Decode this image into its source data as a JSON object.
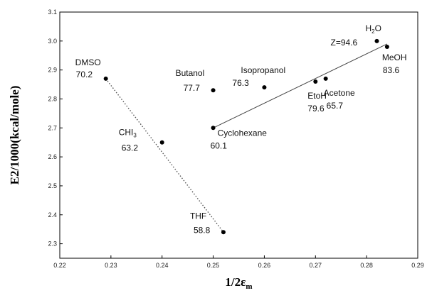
{
  "chart_data": {
    "type": "scatter",
    "xlabel": "1/2ε",
    "xlabel_sub": "m",
    "ylabel": "E2/1000(kcal/mole)",
    "xlim": [
      0.22,
      0.29
    ],
    "ylim": [
      2.25,
      3.1
    ],
    "x_ticks": [
      "0.22",
      "0.23",
      "0.24",
      "0.25",
      "0.26",
      "0.27",
      "0.28",
      "0.29"
    ],
    "y_ticks": [
      "2.3",
      "2.4",
      "2.5",
      "2.6",
      "2.7",
      "2.8",
      "2.9",
      "3.0",
      "3.1"
    ],
    "grid": false,
    "points": [
      {
        "name": "DMSO",
        "value": "70.2",
        "x": 0.229,
        "y": 2.87
      },
      {
        "name": "CHI",
        "name_sub": "3",
        "value": "63.2",
        "x": 0.24,
        "y": 2.65
      },
      {
        "name": "THF",
        "value": "58.8",
        "x": 0.252,
        "y": 2.34
      },
      {
        "name": "Butanol",
        "value": "77.7",
        "x": 0.25,
        "y": 2.83
      },
      {
        "name": "Cyclohexane",
        "value": "60.1",
        "x": 0.25,
        "y": 2.7
      },
      {
        "name": "Isopropanol",
        "value": "76.3",
        "x": 0.26,
        "y": 2.84
      },
      {
        "name": "EtoH",
        "value": "79.6",
        "x": 0.27,
        "y": 2.86
      },
      {
        "name": "Acetone",
        "value": "65.7",
        "x": 0.272,
        "y": 2.87
      },
      {
        "name": "H",
        "name_sub": "2",
        "name_suffix": "O",
        "value": "Z=94.6",
        "x": 0.282,
        "y": 3.0
      },
      {
        "name": "MeOH",
        "value": "83.6",
        "x": 0.284,
        "y": 2.98
      }
    ],
    "fit_lines": [
      {
        "style": "solid",
        "x": [
          0.25,
          0.284
        ],
        "y": [
          2.7,
          2.99
        ]
      },
      {
        "style": "dotted",
        "x": [
          0.229,
          0.252
        ],
        "y": [
          2.87,
          2.34
        ]
      }
    ]
  }
}
